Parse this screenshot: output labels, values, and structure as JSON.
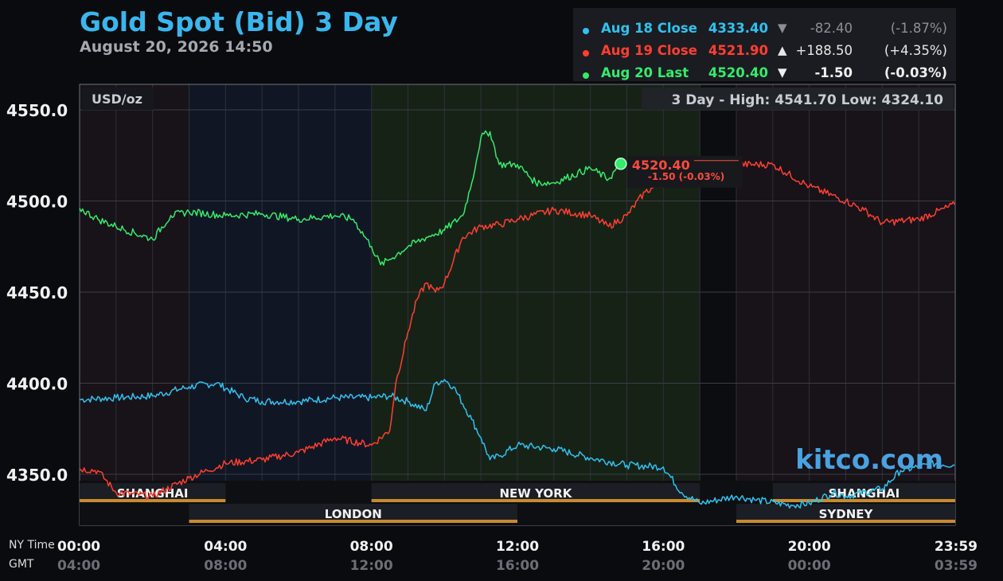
{
  "title": "Gold Spot (Bid) 3 Day",
  "subtitle": "August 20, 2026 14:50",
  "legend": [
    {
      "name": "Aug 18 Close",
      "price": "4333.40",
      "arrow": "▼",
      "change": "-82.40",
      "pct": "(-1.87%)",
      "color": "#2fc2f0",
      "change_color": "#8c9096"
    },
    {
      "name": "Aug 19 Close",
      "price": "4521.90",
      "arrow": "▲",
      "change": "+188.50",
      "pct": "(+4.35%)",
      "color": "#ff3f30",
      "change_color": "#e6e6e6"
    },
    {
      "name": "Aug 20 Last",
      "price": "4520.40",
      "arrow": "▼",
      "change": "-1.50",
      "pct": "(-0.03%)",
      "color": "#35ea6c",
      "change_color": "#f0f0f0"
    }
  ],
  "unit_label": "USD/oz",
  "high_low": "3 Day - High: 4541.70  Low: 4324.10",
  "current": {
    "price": "4520.40",
    "change": "-1.50 (-0.03%)",
    "time": "14:50",
    "value": 4520.4
  },
  "brand": "kitco.com",
  "x_axis_names": {
    "ny": "NY Time",
    "gmt": "GMT"
  },
  "sessions": [
    {
      "label": "SHANGHAI",
      "start": "00:00",
      "end": "04:00",
      "row": 0
    },
    {
      "label": "NEW YORK",
      "start": "08:00",
      "end": "17:00",
      "row": 0
    },
    {
      "label": "SHANGHAI",
      "start": "19:00",
      "end": "23:59",
      "row": 0
    },
    {
      "label": "LONDON",
      "start": "03:00",
      "end": "12:00",
      "row": 1
    },
    {
      "label": "SYDNEY",
      "start": "18:00",
      "end": "23:59",
      "row": 1
    }
  ],
  "colors": {
    "day1": "#2fc2f0",
    "day2": "#ff3f30",
    "day3": "#35ea6c",
    "session_bar": "#c88a2e",
    "brand": "#4aa2e0"
  },
  "chart_data": {
    "type": "line",
    "y_ticks": [
      "4550.0",
      "4500.0",
      "4450.0",
      "4400.0",
      "4350.0"
    ],
    "y_tick_values": [
      4550,
      4500,
      4450,
      4400,
      4350
    ],
    "ylim": [
      4322,
      4564
    ],
    "xlim_hours": [
      0,
      24
    ],
    "x_ticks_ny": [
      "00:00",
      "04:00",
      "08:00",
      "12:00",
      "16:00",
      "20:00",
      "23:59"
    ],
    "x_ticks_gmt": [
      "04:00",
      "08:00",
      "12:00",
      "16:00",
      "20:00",
      "00:00",
      "03:59"
    ],
    "x_tick_hours": [
      0,
      4,
      8,
      12,
      16,
      20,
      24
    ],
    "grid": true,
    "series": [
      {
        "name": "Aug 18 Close",
        "color": "#2fc2f0",
        "x": [
          "00:00",
          "01:00",
          "02:00",
          "03:00",
          "03:45",
          "04:30",
          "05:00",
          "06:00",
          "07:00",
          "08:00",
          "08:30",
          "09:00",
          "09:30",
          "09:45",
          "10:00",
          "10:15",
          "10:45",
          "11:00",
          "11:15",
          "11:30",
          "12:00",
          "13:00",
          "14:00",
          "15:00",
          "16:00",
          "16:30",
          "17:00",
          "18:00",
          "18:30",
          "19:30",
          "20:00",
          "20:40",
          "21:00",
          "22:00",
          "22:30",
          "23:30",
          "23:59"
        ],
        "values": [
          4391,
          4392,
          4393,
          4398,
          4400,
          4392,
          4390,
          4390,
          4392,
          4392,
          4393,
          4390,
          4385,
          4400,
          4402,
          4398,
          4380,
          4370,
          4358,
          4360,
          4366,
          4364,
          4359,
          4355,
          4354,
          4340,
          4334,
          4338,
          4336,
          4333,
          4334,
          4340,
          4338,
          4342,
          4352,
          4356,
          4355
        ]
      },
      {
        "name": "Aug 19 Close",
        "color": "#ff3f30",
        "x": [
          "00:00",
          "00:30",
          "01:00",
          "02:00",
          "03:00",
          "03:30",
          "04:00",
          "05:00",
          "06:00",
          "07:00",
          "08:00",
          "08:30",
          "08:40",
          "09:00",
          "09:15",
          "09:30",
          "09:45",
          "10:00",
          "10:30",
          "11:00",
          "11:30",
          "12:00",
          "13:00",
          "14:00",
          "14:30",
          "15:00",
          "15:30",
          "16:00",
          "17:00",
          "18:00",
          "19:00",
          "20:00",
          "21:00",
          "21:30",
          "22:00",
          "23:00",
          "23:59"
        ],
        "values": [
          4353,
          4352,
          4340,
          4338,
          4348,
          4352,
          4356,
          4358,
          4362,
          4370,
          4366,
          4374,
          4400,
          4428,
          4446,
          4455,
          4450,
          4455,
          4480,
          4486,
          4487,
          4490,
          4495,
          4492,
          4486,
          4492,
          4505,
          4510,
          4516,
          4520,
          4520,
          4508,
          4500,
          4495,
          4488,
          4490,
          4498
        ]
      },
      {
        "name": "Aug 20 Last",
        "color": "#35ea6c",
        "x": [
          "00:00",
          "00:30",
          "01:00",
          "02:00",
          "02:30",
          "03:00",
          "04:00",
          "05:00",
          "06:00",
          "07:00",
          "07:30",
          "08:00",
          "08:15",
          "08:30",
          "09:00",
          "09:30",
          "10:00",
          "10:30",
          "10:45",
          "11:00",
          "11:15",
          "11:30",
          "12:00",
          "12:30",
          "13:00",
          "14:00",
          "14:30",
          "14:50"
        ],
        "values": [
          4496,
          4490,
          4486,
          4479,
          4492,
          4494,
          4492,
          4493,
          4490,
          4492,
          4490,
          4475,
          4465,
          4468,
          4475,
          4480,
          4484,
          4492,
          4510,
          4535,
          4538,
          4520,
          4520,
          4510,
          4510,
          4518,
          4512,
          4520.4
        ]
      }
    ]
  }
}
